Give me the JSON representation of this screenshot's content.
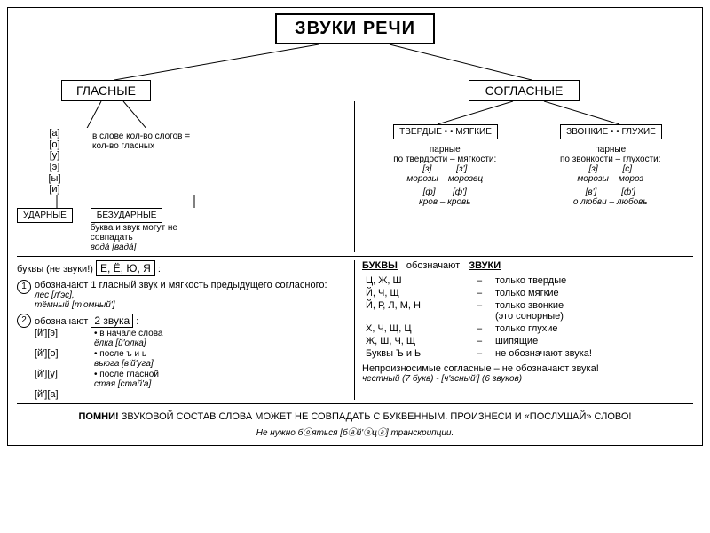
{
  "title": "ЗВУКИ РЕЧИ",
  "vowels": {
    "label": "ГЛАСНЫЕ",
    "sounds_list": "[а]\n[о]\n[у]\n[э]\n[ы]\n[и]",
    "note": "в слове кол-во слогов = кол-во гласных",
    "stressed": "УДАРНЫЕ",
    "unstressed": "БЕЗУДАРНЫЕ",
    "unstressed_note": "буква и звук могут не совпадать",
    "unstressed_example": "вода́ [вада́]"
  },
  "consonants": {
    "label": "СОГЛАСНЫЕ",
    "hard_soft_label": "ТВЕРДЫЕ • • МЯГКИЕ",
    "voiced_voiceless_label": "ЗВОНКИЕ • • ГЛУХИЕ",
    "hs_title": "парные\nпо твердости – мягкости:",
    "hs_pair1_phon": "[з]          [з']",
    "hs_pair1": "морозы – морозец",
    "hs_pair2_phon": "[ф]       [ф']",
    "hs_pair2": "кров – кровь",
    "vv_title": "парные\nпо звонкости – глухости:",
    "vv_pair1_phon": "[з]          [с]",
    "vv_pair1": "морозы – мороз",
    "vv_pair2_phon": "[в']          [ф']",
    "vv_pair2": "о любви – любовь"
  },
  "letters_block": {
    "heading_a": "буквы (не звуки!)",
    "heading_b": "Е, Ё, Ю, Я",
    "heading_c": ":",
    "rule1_num": "1",
    "rule1_text": "обозначают 1 гласный звук и мягкость предыдущего согласного:",
    "rule1_ex": "лес [л'эс],\nтёмный [т'омный']",
    "rule2_num": "2",
    "rule2_text_a": "обозначают ",
    "rule2_text_b": "2 звука",
    "rule2_text_c": " :",
    "rule2_cols": [
      {
        "phon": "[й'][э]",
        "bullet": "• в начале слова",
        "ex": "ёлка [й'олка]"
      },
      {
        "phon": "[й'][о]",
        "bullet": "• после ъ и ь",
        "ex": "вьюга [в'й'уга]"
      },
      {
        "phon": "[й'][у]",
        "bullet": "• после гласной",
        "ex": "стая [стай'а]"
      },
      {
        "phon": "[й'][а]",
        "bullet": "",
        "ex": ""
      }
    ]
  },
  "right_block": {
    "head_left": "БУКВЫ",
    "head_mid": "обозначают",
    "head_right": "ЗВУКИ",
    "rows": [
      {
        "l": "Ц, Ж, Ш",
        "d": "–",
        "r": "только твердые"
      },
      {
        "l": "Й, Ч, Щ",
        "d": "–",
        "r": "только мягкие"
      },
      {
        "l": "Й, Р, Л, М, Н",
        "d": "–",
        "r": "только звонкие\n(это сонорные)"
      },
      {
        "l": "Х, Ч, Щ, Ц",
        "d": "–",
        "r": "только глухие"
      },
      {
        "l": "Ж, Ш, Ч, Щ",
        "d": "–",
        "r": "шипящие"
      },
      {
        "l": "Буквы Ъ и Ь",
        "d": "–",
        "r": "не обозначают звука!"
      }
    ],
    "unpronounced": "Непроизносимые согласные – не обозначают звука!",
    "unp_ex": "честный (7 букв) - [ч'эсный'] (6 звуков)"
  },
  "reminder": {
    "label": "ПОМНИ!",
    "text": "ЗВУКОВОЙ СОСТАВ СЛОВА МОЖЕТ НЕ СОВПАДАТЬ С БУКВЕННЫМ. ПРОИЗНЕСИ И «ПОСЛУШАЙ» СЛОВО!",
    "ex": "Не нужно бⓞяться [бⓐй'ⓐцⓐ] транскрипции."
  },
  "svg": {
    "stroke": "#000000",
    "width": 1
  }
}
